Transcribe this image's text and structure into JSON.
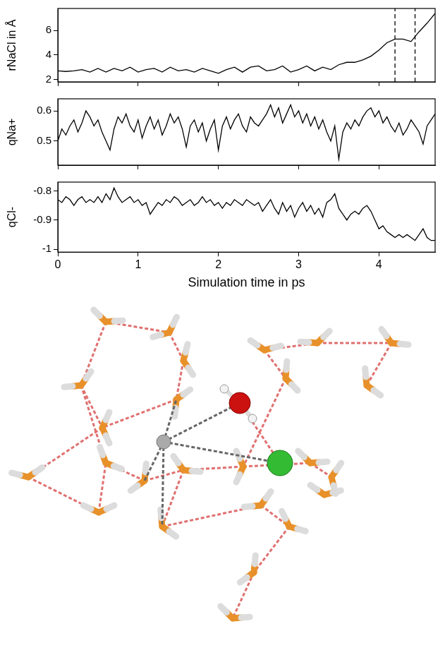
{
  "chart_data": [
    {
      "type": "line",
      "ylabel": "rNaCl in Å",
      "tick_labels": "y",
      "grid": false,
      "color": "#000000",
      "xlim": [
        0,
        4.7
      ],
      "xticks": [
        0,
        1,
        2,
        3,
        4
      ],
      "ylim": [
        1.8,
        7.8
      ],
      "yticks": [
        2,
        4,
        6
      ],
      "x": [
        0,
        0.1,
        0.2,
        0.3,
        0.4,
        0.5,
        0.6,
        0.7,
        0.8,
        0.9,
        1.0,
        1.1,
        1.2,
        1.3,
        1.4,
        1.5,
        1.6,
        1.7,
        1.8,
        1.9,
        2.0,
        2.1,
        2.2,
        2.3,
        2.4,
        2.5,
        2.6,
        2.7,
        2.8,
        2.9,
        3.0,
        3.1,
        3.2,
        3.3,
        3.4,
        3.5,
        3.6,
        3.7,
        3.8,
        3.9,
        4.0,
        4.1,
        4.2,
        4.3,
        4.4,
        4.5,
        4.6,
        4.7
      ],
      "values": [
        2.7,
        2.65,
        2.7,
        2.8,
        2.6,
        2.9,
        2.6,
        2.9,
        2.7,
        3.0,
        2.6,
        2.8,
        2.9,
        2.6,
        3.0,
        2.7,
        2.8,
        2.6,
        2.9,
        2.7,
        2.5,
        2.8,
        3.0,
        2.6,
        3.0,
        3.1,
        2.7,
        2.8,
        3.1,
        2.6,
        2.8,
        3.1,
        2.7,
        3.0,
        2.8,
        3.2,
        3.4,
        3.4,
        3.6,
        3.9,
        4.4,
        5.0,
        5.3,
        5.3,
        5.1,
        5.9,
        6.6,
        7.4
      ],
      "vlines": [
        4.2,
        4.45
      ],
      "line_style": "dashed"
    },
    {
      "type": "line",
      "ylabel": "qNa+",
      "tick_labels": "y",
      "grid": false,
      "color": "#000000",
      "xlim": [
        0,
        4.7
      ],
      "xticks": [
        0,
        1,
        2,
        3,
        4
      ],
      "ylim": [
        0.42,
        0.64
      ],
      "yticks": [
        0.5,
        0.6
      ],
      "x": [
        0,
        0.05,
        0.1,
        0.15,
        0.2,
        0.25,
        0.3,
        0.35,
        0.4,
        0.45,
        0.5,
        0.55,
        0.6,
        0.65,
        0.7,
        0.75,
        0.8,
        0.85,
        0.9,
        0.95,
        1.0,
        1.05,
        1.1,
        1.15,
        1.2,
        1.25,
        1.3,
        1.35,
        1.4,
        1.45,
        1.5,
        1.55,
        1.6,
        1.65,
        1.7,
        1.75,
        1.8,
        1.85,
        1.9,
        1.95,
        2.0,
        2.05,
        2.1,
        2.15,
        2.2,
        2.25,
        2.3,
        2.35,
        2.4,
        2.45,
        2.5,
        2.55,
        2.6,
        2.65,
        2.7,
        2.75,
        2.8,
        2.85,
        2.9,
        2.95,
        3.0,
        3.05,
        3.1,
        3.15,
        3.2,
        3.25,
        3.3,
        3.35,
        3.4,
        3.45,
        3.5,
        3.55,
        3.6,
        3.65,
        3.7,
        3.75,
        3.8,
        3.85,
        3.9,
        3.95,
        4.0,
        4.05,
        4.1,
        4.15,
        4.2,
        4.25,
        4.3,
        4.35,
        4.4,
        4.45,
        4.5,
        4.55,
        4.6,
        4.65,
        4.7
      ],
      "values": [
        0.5,
        0.54,
        0.52,
        0.55,
        0.57,
        0.53,
        0.56,
        0.6,
        0.58,
        0.55,
        0.57,
        0.53,
        0.5,
        0.47,
        0.54,
        0.58,
        0.56,
        0.59,
        0.55,
        0.53,
        0.57,
        0.51,
        0.55,
        0.58,
        0.54,
        0.57,
        0.52,
        0.55,
        0.59,
        0.56,
        0.58,
        0.54,
        0.48,
        0.55,
        0.57,
        0.53,
        0.56,
        0.5,
        0.54,
        0.57,
        0.47,
        0.55,
        0.58,
        0.54,
        0.57,
        0.59,
        0.55,
        0.53,
        0.58,
        0.56,
        0.55,
        0.57,
        0.59,
        0.62,
        0.58,
        0.61,
        0.56,
        0.59,
        0.62,
        0.58,
        0.6,
        0.56,
        0.59,
        0.55,
        0.58,
        0.54,
        0.57,
        0.53,
        0.5,
        0.55,
        0.44,
        0.53,
        0.56,
        0.54,
        0.57,
        0.55,
        0.58,
        0.6,
        0.61,
        0.58,
        0.6,
        0.56,
        0.58,
        0.55,
        0.53,
        0.56,
        0.52,
        0.54,
        0.57,
        0.55,
        0.53,
        0.49,
        0.55,
        0.57,
        0.59
      ]
    },
    {
      "type": "line",
      "ylabel": "qCl-",
      "xlabel": "Simulation time in ps",
      "grid": false,
      "color": "#000000",
      "xlim": [
        0,
        4.7
      ],
      "xticks": [
        0,
        1,
        2,
        3,
        4
      ],
      "ylim": [
        -1.01,
        -0.77
      ],
      "yticks": [
        -1,
        -0.9,
        -0.8
      ],
      "x": [
        0,
        0.05,
        0.1,
        0.15,
        0.2,
        0.25,
        0.3,
        0.35,
        0.4,
        0.45,
        0.5,
        0.55,
        0.6,
        0.65,
        0.7,
        0.75,
        0.8,
        0.85,
        0.9,
        0.95,
        1.0,
        1.05,
        1.1,
        1.15,
        1.2,
        1.25,
        1.3,
        1.35,
        1.4,
        1.45,
        1.5,
        1.55,
        1.6,
        1.65,
        1.7,
        1.75,
        1.8,
        1.85,
        1.9,
        1.95,
        2.0,
        2.05,
        2.1,
        2.15,
        2.2,
        2.25,
        2.3,
        2.35,
        2.4,
        2.45,
        2.5,
        2.55,
        2.6,
        2.65,
        2.7,
        2.75,
        2.8,
        2.85,
        2.9,
        2.95,
        3.0,
        3.05,
        3.1,
        3.15,
        3.2,
        3.25,
        3.3,
        3.35,
        3.4,
        3.45,
        3.5,
        3.55,
        3.6,
        3.65,
        3.7,
        3.75,
        3.8,
        3.85,
        3.9,
        3.95,
        4.0,
        4.05,
        4.1,
        4.15,
        4.2,
        4.25,
        4.3,
        4.35,
        4.4,
        4.45,
        4.5,
        4.55,
        4.6,
        4.65,
        4.7
      ],
      "values": [
        -0.83,
        -0.84,
        -0.82,
        -0.83,
        -0.85,
        -0.83,
        -0.82,
        -0.84,
        -0.83,
        -0.84,
        -0.82,
        -0.84,
        -0.81,
        -0.83,
        -0.79,
        -0.82,
        -0.84,
        -0.83,
        -0.82,
        -0.84,
        -0.83,
        -0.85,
        -0.84,
        -0.88,
        -0.86,
        -0.84,
        -0.85,
        -0.83,
        -0.84,
        -0.82,
        -0.83,
        -0.85,
        -0.84,
        -0.83,
        -0.85,
        -0.84,
        -0.82,
        -0.84,
        -0.83,
        -0.85,
        -0.84,
        -0.86,
        -0.84,
        -0.85,
        -0.83,
        -0.84,
        -0.85,
        -0.83,
        -0.84,
        -0.85,
        -0.84,
        -0.87,
        -0.85,
        -0.83,
        -0.86,
        -0.88,
        -0.84,
        -0.87,
        -0.85,
        -0.89,
        -0.86,
        -0.84,
        -0.87,
        -0.85,
        -0.88,
        -0.86,
        -0.89,
        -0.84,
        -0.83,
        -0.81,
        -0.86,
        -0.88,
        -0.9,
        -0.88,
        -0.87,
        -0.88,
        -0.86,
        -0.85,
        -0.87,
        -0.9,
        -0.93,
        -0.92,
        -0.94,
        -0.95,
        -0.96,
        -0.95,
        -0.96,
        -0.95,
        -0.96,
        -0.97,
        -0.95,
        -0.93,
        -0.96,
        -0.97,
        -0.97
      ]
    }
  ]
}
